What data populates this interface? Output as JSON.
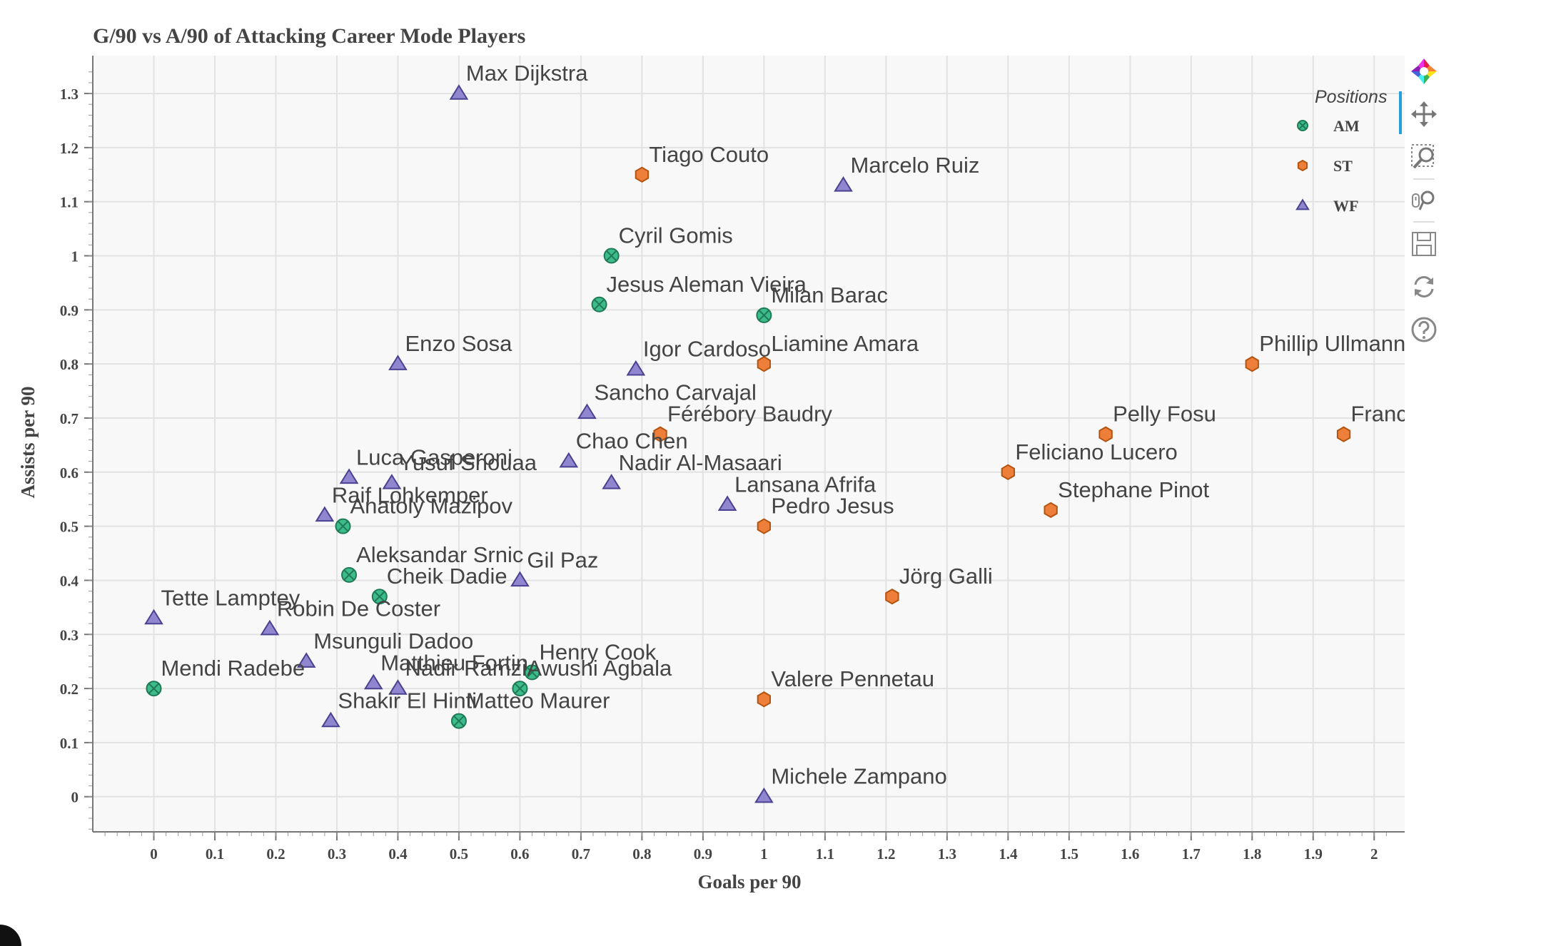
{
  "chart_data": {
    "type": "scatter",
    "title": "G/90 vs A/90 of Attacking Career Mode Players",
    "xlabel": "Goals per 90",
    "ylabel": "Assists per 90",
    "xlim": [
      -0.1,
      2.05
    ],
    "ylim": [
      -0.065,
      1.37
    ],
    "xticks": [
      "0",
      "0.1",
      "0.2",
      "0.3",
      "0.4",
      "0.5",
      "0.6",
      "0.7",
      "0.8",
      "0.9",
      "1",
      "1.1",
      "1.2",
      "1.3",
      "1.4",
      "1.5",
      "1.6",
      "1.7",
      "1.8",
      "1.9",
      "2"
    ],
    "yticks": [
      "0",
      "0.1",
      "0.2",
      "0.3",
      "0.4",
      "0.5",
      "0.6",
      "0.7",
      "0.8",
      "0.9",
      "1",
      "1.1",
      "1.2",
      "1.3"
    ],
    "grid": true,
    "legend": {
      "title": "Positions",
      "placement": "top-right",
      "entries": [
        {
          "name": "AM",
          "color": "#3dbb8b",
          "marker": "circle-x"
        },
        {
          "name": "ST",
          "color": "#ee7f3a",
          "marker": "hex"
        },
        {
          "name": "WF",
          "color": "#8f86cf",
          "marker": "triangle"
        }
      ]
    },
    "points": [
      {
        "label": "Max Dijkstra",
        "x": 0.5,
        "y": 1.3,
        "pos": "WF"
      },
      {
        "label": "Tiago Couto",
        "x": 0.8,
        "y": 1.15,
        "pos": "ST"
      },
      {
        "label": "Marcelo Ruiz",
        "x": 1.13,
        "y": 1.13,
        "pos": "WF"
      },
      {
        "label": "Cyril Gomis",
        "x": 0.75,
        "y": 1.0,
        "pos": "AM"
      },
      {
        "label": "Jesus Aleman Vieira",
        "x": 0.73,
        "y": 0.91,
        "pos": "AM"
      },
      {
        "label": "Milan Barac",
        "x": 1.0,
        "y": 0.89,
        "pos": "AM"
      },
      {
        "label": "Enzo Sosa",
        "x": 0.4,
        "y": 0.8,
        "pos": "WF"
      },
      {
        "label": "Igor Cardoso",
        "x": 0.79,
        "y": 0.79,
        "pos": "WF"
      },
      {
        "label": "Liamine Amara",
        "x": 1.0,
        "y": 0.8,
        "pos": "ST"
      },
      {
        "label": "Phillip Ullmann",
        "x": 1.8,
        "y": 0.8,
        "pos": "ST"
      },
      {
        "label": "Sancho Carvajal",
        "x": 0.71,
        "y": 0.71,
        "pos": "WF"
      },
      {
        "label": "Férébory Baudry",
        "x": 0.83,
        "y": 0.67,
        "pos": "ST"
      },
      {
        "label": "Pelly Fosu",
        "x": 1.56,
        "y": 0.67,
        "pos": "ST"
      },
      {
        "label": "Franc",
        "x": 1.95,
        "y": 0.67,
        "pos": "ST"
      },
      {
        "label": "Chao Chen",
        "x": 0.68,
        "y": 0.62,
        "pos": "WF"
      },
      {
        "label": "Feliciano Lucero",
        "x": 1.4,
        "y": 0.6,
        "pos": "ST"
      },
      {
        "label": "Luca Gasperoni",
        "x": 0.32,
        "y": 0.59,
        "pos": "WF"
      },
      {
        "label": "Yusuf Shouaa",
        "x": 0.39,
        "y": 0.58,
        "pos": "WF"
      },
      {
        "label": "Nadir Al-Masaari",
        "x": 0.75,
        "y": 0.58,
        "pos": "WF"
      },
      {
        "label": "Lansana Afrifa",
        "x": 0.94,
        "y": 0.54,
        "pos": "WF"
      },
      {
        "label": "Stephane Pinot",
        "x": 1.47,
        "y": 0.53,
        "pos": "ST"
      },
      {
        "label": "Raif Lohkemper",
        "x": 0.28,
        "y": 0.52,
        "pos": "WF"
      },
      {
        "label": "Anatoly Mazipov",
        "x": 0.31,
        "y": 0.5,
        "pos": "AM"
      },
      {
        "label": "Pedro Jesus",
        "x": 1.0,
        "y": 0.5,
        "pos": "ST"
      },
      {
        "label": "Aleksandar Srnic",
        "x": 0.32,
        "y": 0.41,
        "pos": "AM"
      },
      {
        "label": "Gil Paz",
        "x": 0.6,
        "y": 0.4,
        "pos": "WF"
      },
      {
        "label": "Cheik Dadie",
        "x": 0.37,
        "y": 0.37,
        "pos": "AM"
      },
      {
        "label": "Jörg Galli",
        "x": 1.21,
        "y": 0.37,
        "pos": "ST"
      },
      {
        "label": "Tette Lamptey",
        "x": 0.0,
        "y": 0.33,
        "pos": "WF"
      },
      {
        "label": "Robin De Coster",
        "x": 0.19,
        "y": 0.31,
        "pos": "WF"
      },
      {
        "label": "Msunguli Dadoo",
        "x": 0.25,
        "y": 0.25,
        "pos": "WF"
      },
      {
        "label": "Henry Cook",
        "x": 0.62,
        "y": 0.23,
        "pos": "AM"
      },
      {
        "label": "Matthieu Fortin",
        "x": 0.36,
        "y": 0.21,
        "pos": "WF"
      },
      {
        "label": "Nadir Ramzi",
        "x": 0.4,
        "y": 0.2,
        "pos": "WF"
      },
      {
        "label": "Awushi Agbala",
        "x": 0.6,
        "y": 0.2,
        "pos": "AM"
      },
      {
        "label": "Mendi Radebe",
        "x": 0.0,
        "y": 0.2,
        "pos": "AM"
      },
      {
        "label": "Valere Pennetau",
        "x": 1.0,
        "y": 0.18,
        "pos": "ST"
      },
      {
        "label": "Shakir El Hinti",
        "x": 0.29,
        "y": 0.14,
        "pos": "WF"
      },
      {
        "label": "Matteo Maurer",
        "x": 0.5,
        "y": 0.14,
        "pos": "AM"
      },
      {
        "label": "Michele Zampano",
        "x": 1.0,
        "y": 0.0,
        "pos": "WF"
      }
    ]
  },
  "toolbar": {
    "tools": [
      {
        "name": "bokeh-logo",
        "icon": "bokeh-logo-icon"
      },
      {
        "name": "pan-tool",
        "icon": "pan-icon"
      },
      {
        "name": "box-zoom-tool",
        "icon": "box-zoom-icon"
      },
      {
        "name": "wheel-zoom-tool",
        "icon": "wheel-zoom-icon"
      },
      {
        "name": "save-tool",
        "icon": "save-icon"
      },
      {
        "name": "reset-tool",
        "icon": "reset-icon"
      },
      {
        "name": "help-tool",
        "icon": "help-icon"
      }
    ]
  }
}
